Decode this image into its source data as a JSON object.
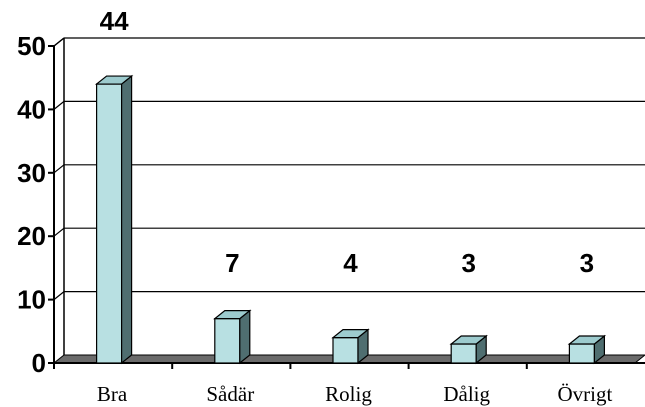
{
  "chart_data": {
    "type": "bar",
    "categories": [
      "Bra",
      "Sådär",
      "Rolig",
      "Dålig",
      "Övrigt"
    ],
    "values": [
      44,
      7,
      4,
      3,
      3
    ],
    "data_labels": [
      "44",
      "7",
      "4",
      "3",
      "3"
    ],
    "yticks": [
      "0",
      "10",
      "20",
      "30",
      "40",
      "50"
    ],
    "ylim": [
      0,
      50
    ],
    "grid": true,
    "bar_style": "3d",
    "colors": {
      "bar_front": "#b8e0e2",
      "bar_top": "#9dcbce",
      "bar_side": "#4f6e70",
      "floor": "#6b6b6b",
      "grid": "#000000"
    }
  }
}
